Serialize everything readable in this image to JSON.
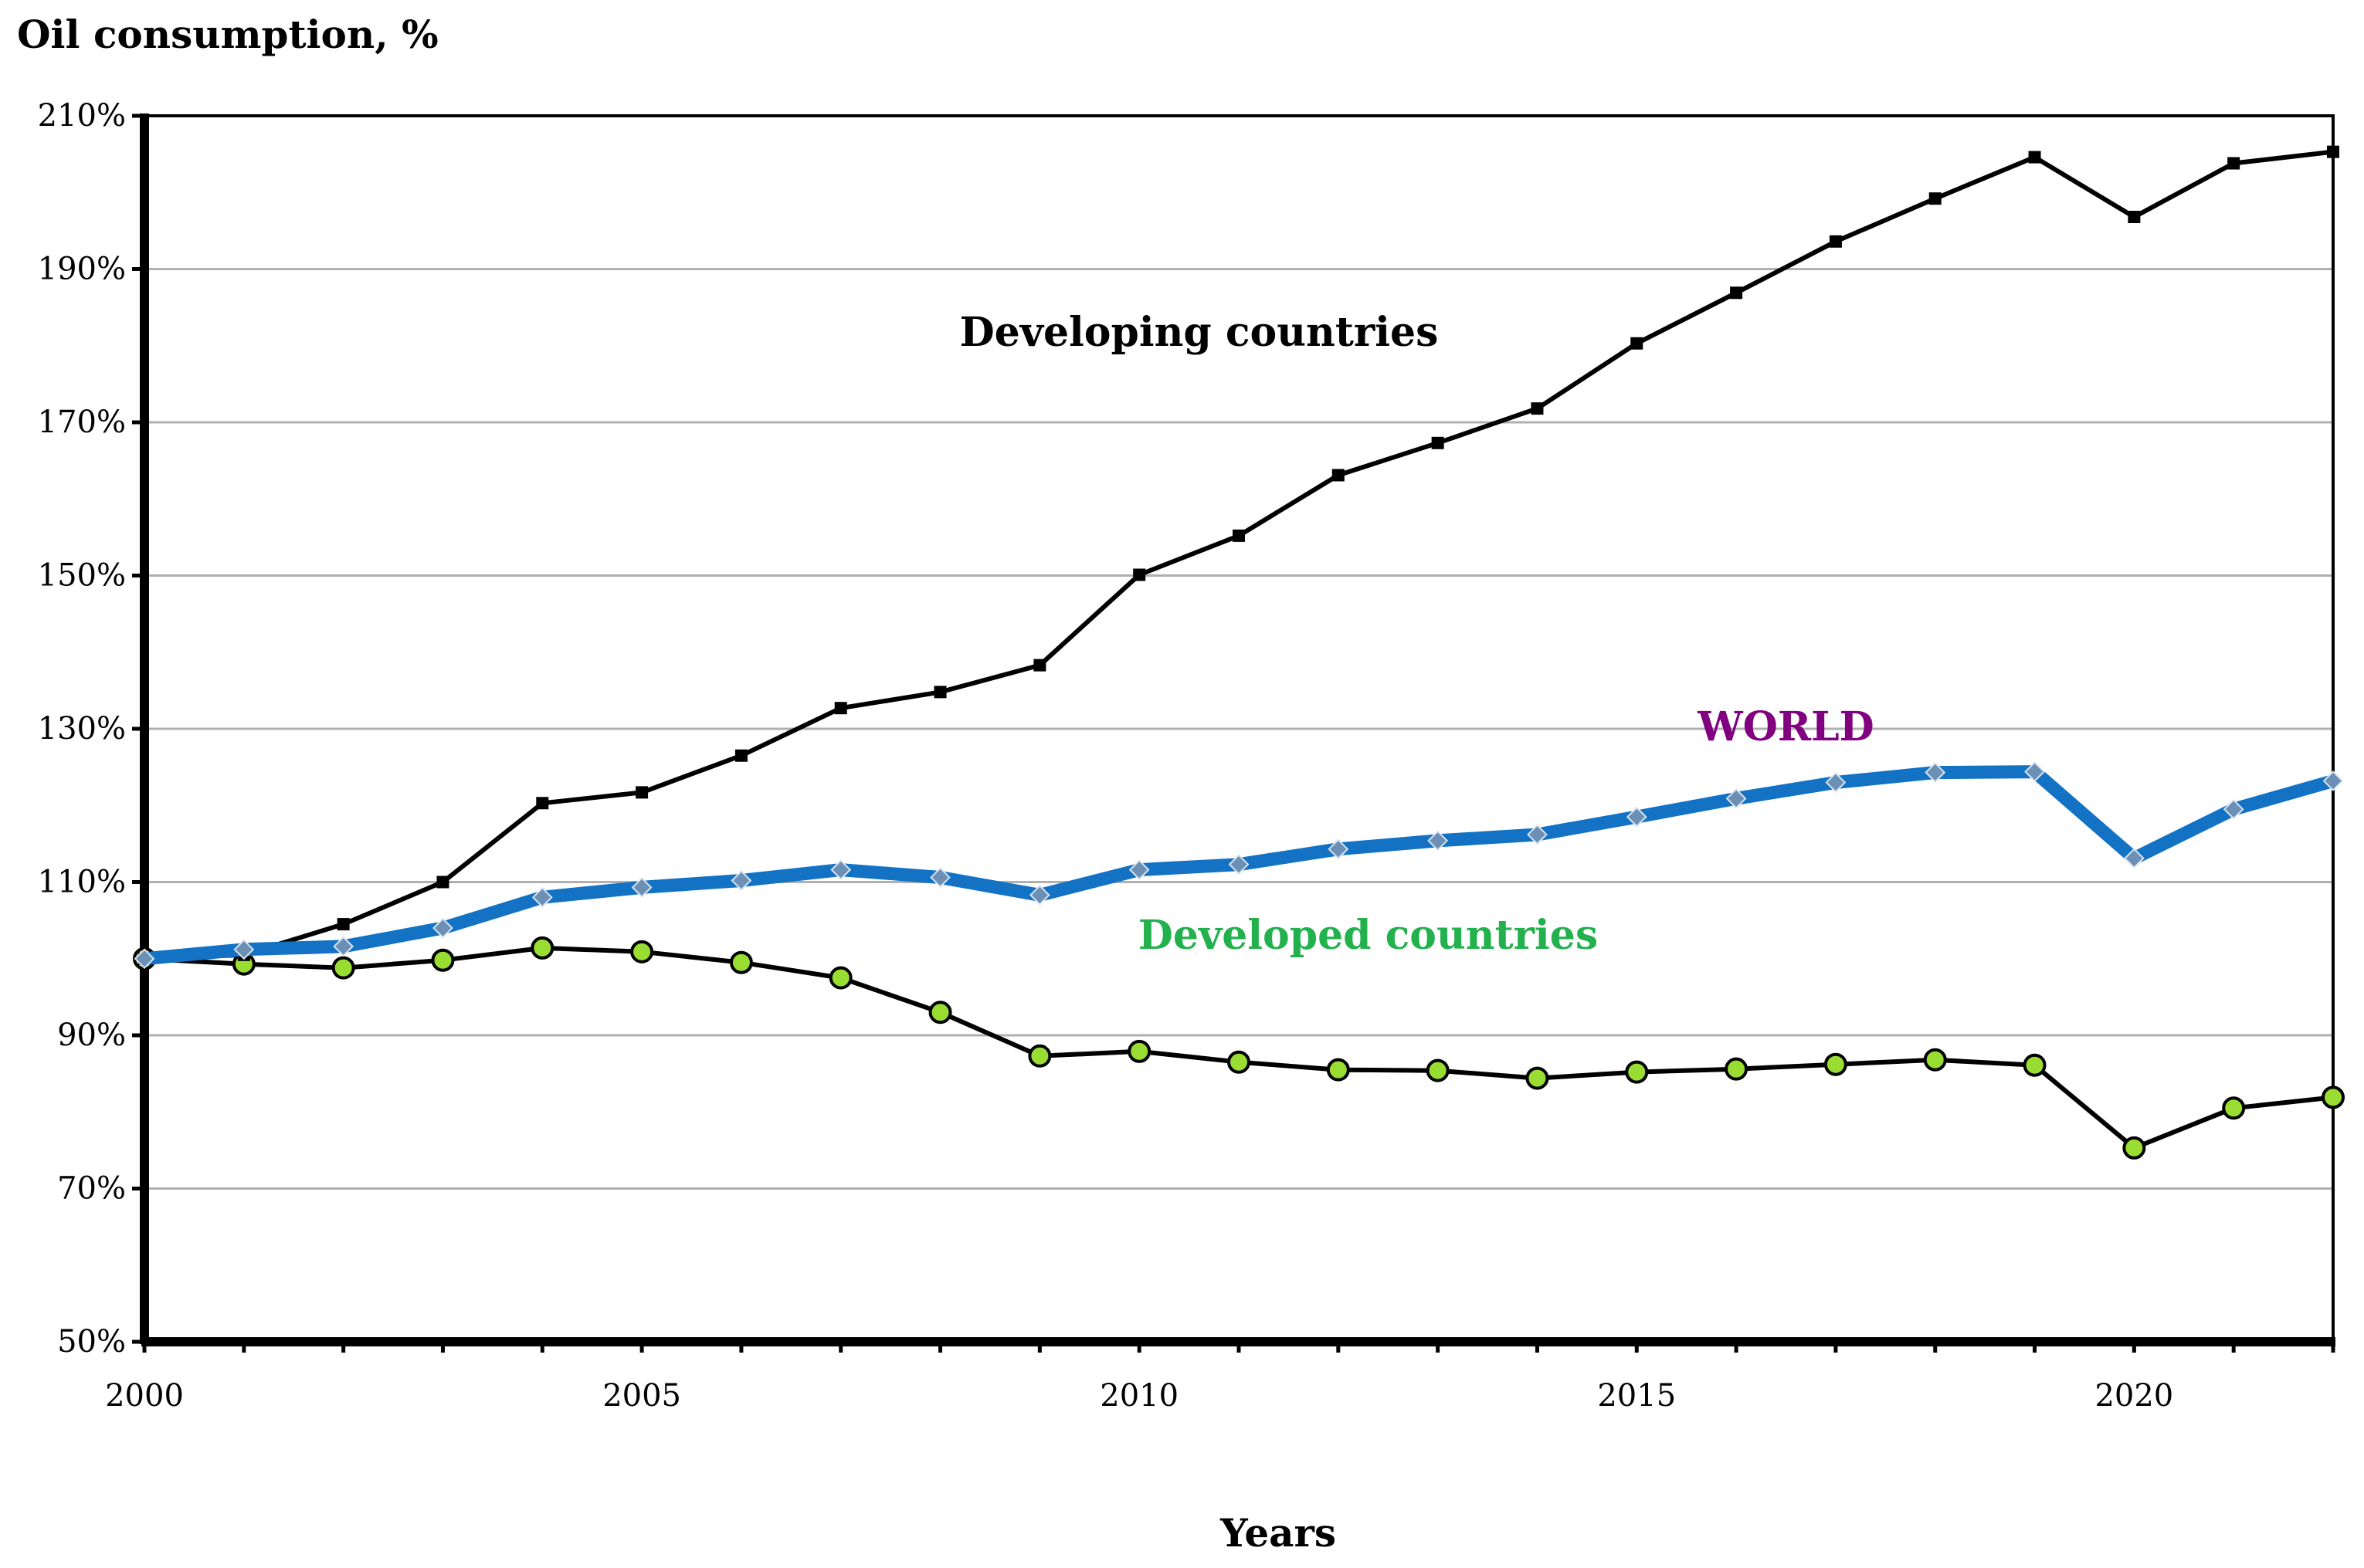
{
  "chart_data": {
    "type": "line",
    "title": "",
    "ylabel": "Oil consumption, %",
    "xlabel": "Years",
    "ylim": [
      50,
      210
    ],
    "xlim": [
      2000,
      2022
    ],
    "y_ticks": [
      50,
      70,
      90,
      110,
      130,
      150,
      170,
      190,
      210
    ],
    "y_tick_labels": [
      "50%",
      "70%",
      "90%",
      "110%",
      "130%",
      "150%",
      "170%",
      "190%",
      "210%"
    ],
    "x_ticks": [
      2000,
      2005,
      2010,
      2015,
      2020
    ],
    "x_tick_labels": [
      "2000",
      "2005",
      "2010",
      "2015",
      "2020"
    ],
    "grid": true,
    "x": [
      2000,
      2001,
      2002,
      2003,
      2004,
      2005,
      2006,
      2007,
      2008,
      2009,
      2010,
      2011,
      2012,
      2013,
      2014,
      2015,
      2016,
      2017,
      2018,
      2019,
      2020,
      2021,
      2022
    ],
    "series": [
      {
        "name": "Developing countries",
        "color": "#000000",
        "marker": "square",
        "values": [
          100,
          100.5,
          104.5,
          110,
          120.3,
          121.7,
          126.5,
          132.7,
          134.8,
          138.3,
          150.1,
          155.2,
          163.1,
          167.3,
          171.8,
          180.3,
          186.9,
          193.6,
          199.2,
          204.6,
          196.8,
          203.8,
          205.3
        ]
      },
      {
        "name": "WORLD",
        "color": "#1372c4",
        "marker": "diamond",
        "values": [
          100,
          101.2,
          101.6,
          104,
          108,
          109.3,
          110.2,
          111.6,
          110.6,
          108.3,
          111.6,
          112.3,
          114.3,
          115.4,
          116.2,
          118.5,
          120.9,
          123,
          124.3,
          124.4,
          113.1,
          119.5,
          123.2
        ]
      },
      {
        "name": "Developed countries",
        "color": "#000000",
        "marker": "circle",
        "marker_fill": "#99dd33",
        "values": [
          100,
          99.3,
          98.8,
          99.8,
          101.4,
          100.9,
          99.5,
          97.5,
          93,
          87.3,
          87.9,
          86.5,
          85.5,
          85.4,
          84.4,
          85.2,
          85.6,
          86.2,
          86.8,
          86.1,
          75.3,
          80.5,
          81.9
        ]
      }
    ],
    "annotations": [
      {
        "text": "Developing countries",
        "x": 2010.6,
        "y": 180,
        "color": "#000000"
      },
      {
        "text": "WORLD",
        "x": 2016.5,
        "y": 128.5,
        "color": "#800080"
      },
      {
        "text": "Developed countries",
        "x": 2012.3,
        "y": 101.3,
        "color": "#22b14c"
      }
    ]
  }
}
